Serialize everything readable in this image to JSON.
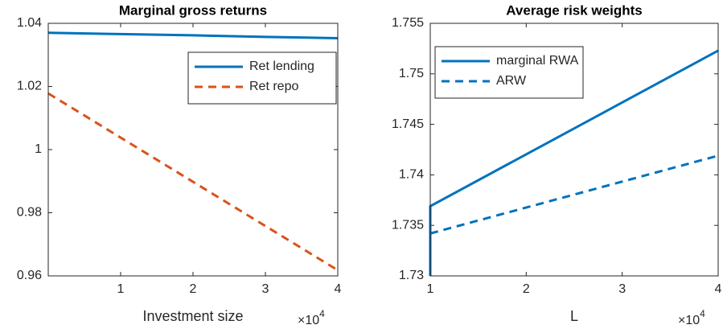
{
  "chart_data": [
    {
      "type": "line",
      "title": "Marginal gross returns",
      "xlabel": "Investment size",
      "x_multiplier": "×10",
      "x_multiplier_exponent": "4",
      "xlim": [
        0,
        4
      ],
      "xticks": [
        1,
        2,
        3,
        4
      ],
      "ylim": [
        0.96,
        1.04
      ],
      "yticks": [
        0.96,
        0.98,
        1,
        1.02,
        1.04
      ],
      "legend": "northeast",
      "series": [
        {
          "name": "Ret lending",
          "color": "#0072BD",
          "style": "solid",
          "x": [
            0,
            1,
            2,
            3,
            4
          ],
          "values": [
            1.037,
            1.0366,
            1.0362,
            1.0357,
            1.0353
          ]
        },
        {
          "name": "Ret repo",
          "color": "#D95319",
          "style": "dashed",
          "x": [
            0,
            1,
            2,
            3,
            4
          ],
          "values": [
            1.0178,
            1.0038,
            0.9898,
            0.9758,
            0.9618
          ]
        }
      ]
    },
    {
      "type": "line",
      "title": "Average risk weights",
      "xlabel": "L",
      "x_multiplier": "×10",
      "x_multiplier_exponent": "4",
      "xlim": [
        1,
        4
      ],
      "xticks": [
        1,
        2,
        3,
        4
      ],
      "ylim": [
        1.73,
        1.755
      ],
      "yticks": [
        1.73,
        1.735,
        1.74,
        1.745,
        1.75,
        1.755
      ],
      "legend": "northwest",
      "series": [
        {
          "name": "marginal RWA",
          "color": "#0072BD",
          "style": "solid",
          "x": [
            1,
            1,
            4
          ],
          "values": [
            1.73,
            1.7369,
            1.7523
          ]
        },
        {
          "name": "ARW",
          "color": "#0072BD",
          "style": "dashed",
          "x": [
            1,
            4
          ],
          "values": [
            1.7342,
            1.7419
          ]
        }
      ]
    }
  ]
}
